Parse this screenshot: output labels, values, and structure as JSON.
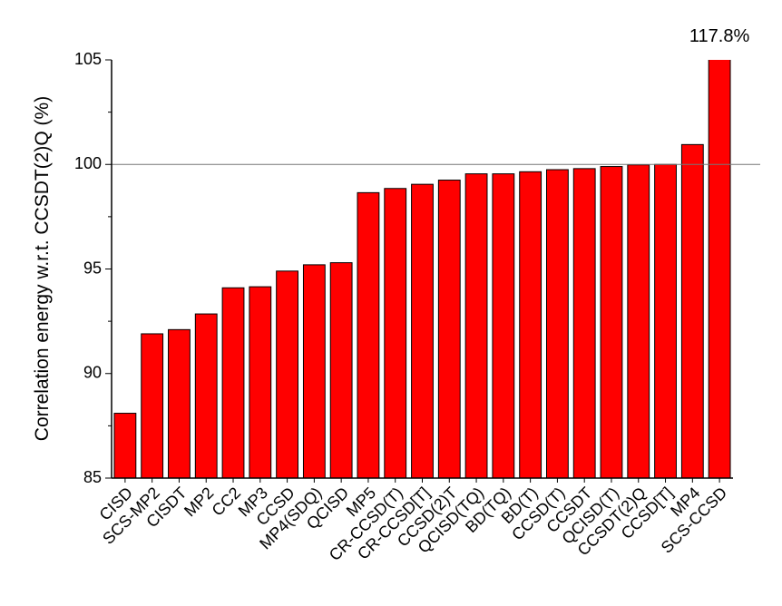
{
  "chart_data": {
    "type": "bar",
    "y_label": "Correlation energy w.r.t. CCSDT(2)Q (%)",
    "categories": [
      "CISD",
      "SCS-MP2",
      "CISDT",
      "MP2",
      "CC2",
      "MP3",
      "CCSD",
      "MP4(SDQ)",
      "QCISD",
      "MP5",
      "CR-CCSD(T)",
      "CR-CCSD[T]",
      "CCSD(2)T",
      "QCISD(TQ)",
      "BD(TQ)",
      "BD(T)",
      "CCSD(T)",
      "CCSDT",
      "QCISD(T)",
      "CCSDT(2)Q",
      "CCSD[T]",
      "MP4",
      "SCS-CCSD"
    ],
    "values": [
      88.1,
      91.9,
      92.1,
      92.85,
      94.1,
      94.15,
      94.9,
      95.2,
      95.3,
      98.65,
      98.85,
      99.05,
      99.25,
      99.55,
      99.55,
      99.65,
      99.75,
      99.8,
      99.9,
      99.98,
      100.0,
      100.95,
      117.8
    ],
    "value_labels": [
      null,
      null,
      null,
      null,
      null,
      null,
      null,
      null,
      null,
      null,
      null,
      null,
      null,
      null,
      null,
      null,
      null,
      null,
      null,
      null,
      null,
      null,
      "117.8%"
    ],
    "color": "#ff0000",
    "ylim": [
      85,
      105
    ],
    "yticks": [
      85,
      90,
      95,
      100,
      105
    ],
    "reference_line": 100
  }
}
